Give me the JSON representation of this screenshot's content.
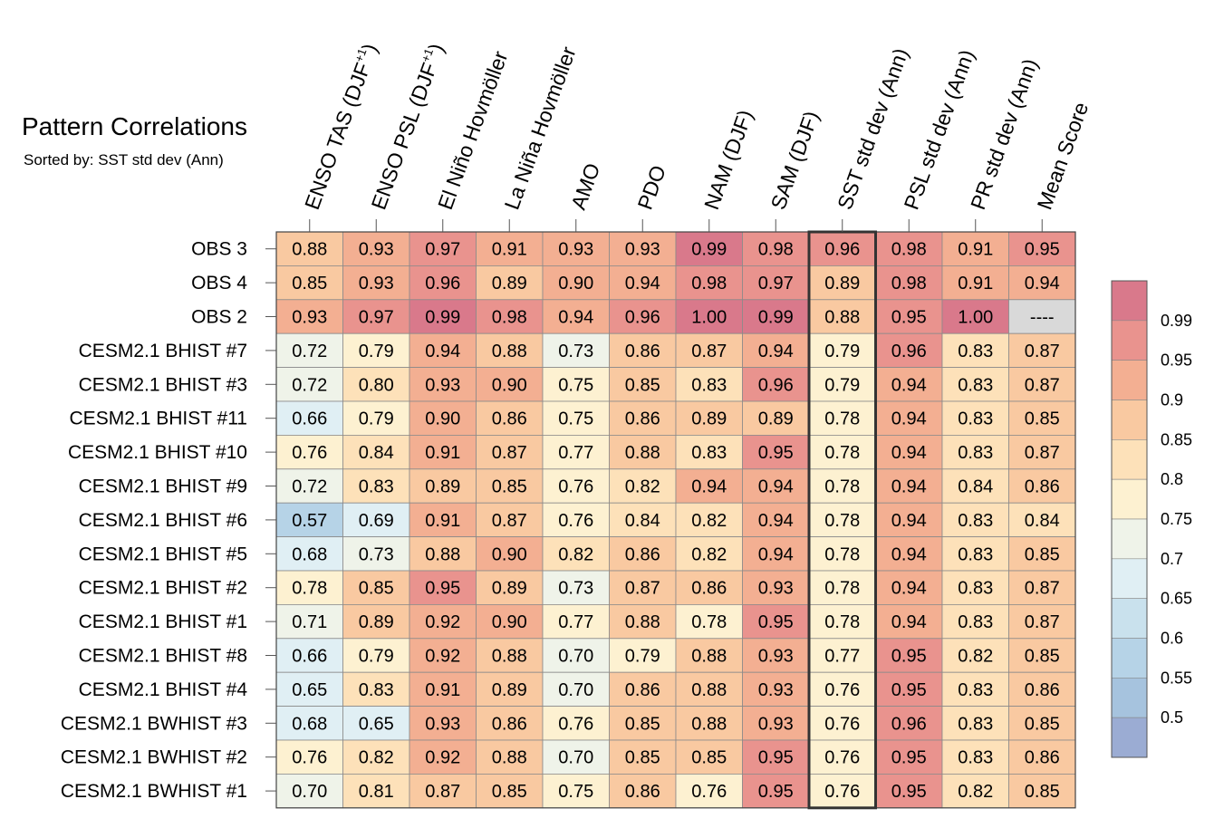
{
  "title": "Pattern Correlations",
  "subtitle": "Sorted by: SST std dev (Ann)",
  "chart_data": {
    "type": "heatmap",
    "title": "Pattern Correlations",
    "subtitle": "Sorted by: SST std dev (Ann)",
    "columns": [
      "ENSO TAS (DJF⁺¹)",
      "ENSO PSL (DJF⁺¹)",
      "El Niño Hovmöller",
      "La Niña Hovmöller",
      "AMO",
      "PDO",
      "NAM (DJF)",
      "SAM (DJF)",
      "SST std dev (Ann)",
      "PSL std dev (Ann)",
      "PR std dev (Ann)",
      "Mean Score"
    ],
    "rows": [
      "OBS 3",
      "OBS 4",
      "OBS 2",
      "CESM2.1 BHIST #7",
      "CESM2.1 BHIST #3",
      "CESM2.1 BHIST #11",
      "CESM2.1 BHIST #10",
      "CESM2.1 BHIST #9",
      "CESM2.1 BHIST #6",
      "CESM2.1 BHIST #5",
      "CESM2.1 BHIST #2",
      "CESM2.1 BHIST #1",
      "CESM2.1 BHIST #8",
      "CESM2.1 BHIST #4",
      "CESM2.1 BWHIST #3",
      "CESM2.1 BWHIST #2",
      "CESM2.1 BWHIST #1"
    ],
    "values": [
      [
        "0.88",
        "0.93",
        "0.97",
        "0.91",
        "0.93",
        "0.93",
        "0.99",
        "0.98",
        "0.96",
        "0.98",
        "0.91",
        "0.95"
      ],
      [
        "0.85",
        "0.93",
        "0.96",
        "0.89",
        "0.90",
        "0.94",
        "0.98",
        "0.97",
        "0.89",
        "0.98",
        "0.91",
        "0.94"
      ],
      [
        "0.93",
        "0.97",
        "0.99",
        "0.98",
        "0.94",
        "0.96",
        "1.00",
        "0.99",
        "0.88",
        "0.95",
        "1.00",
        "----"
      ],
      [
        "0.72",
        "0.79",
        "0.94",
        "0.88",
        "0.73",
        "0.86",
        "0.87",
        "0.94",
        "0.79",
        "0.96",
        "0.83",
        "0.87"
      ],
      [
        "0.72",
        "0.80",
        "0.93",
        "0.90",
        "0.75",
        "0.85",
        "0.83",
        "0.96",
        "0.79",
        "0.94",
        "0.83",
        "0.87"
      ],
      [
        "0.66",
        "0.79",
        "0.90",
        "0.86",
        "0.75",
        "0.86",
        "0.89",
        "0.89",
        "0.78",
        "0.94",
        "0.83",
        "0.85"
      ],
      [
        "0.76",
        "0.84",
        "0.91",
        "0.87",
        "0.77",
        "0.88",
        "0.83",
        "0.95",
        "0.78",
        "0.94",
        "0.83",
        "0.87"
      ],
      [
        "0.72",
        "0.83",
        "0.89",
        "0.85",
        "0.76",
        "0.82",
        "0.94",
        "0.94",
        "0.78",
        "0.94",
        "0.84",
        "0.86"
      ],
      [
        "0.57",
        "0.69",
        "0.91",
        "0.87",
        "0.76",
        "0.84",
        "0.82",
        "0.94",
        "0.78",
        "0.94",
        "0.83",
        "0.84"
      ],
      [
        "0.68",
        "0.73",
        "0.88",
        "0.90",
        "0.82",
        "0.86",
        "0.82",
        "0.94",
        "0.78",
        "0.94",
        "0.83",
        "0.85"
      ],
      [
        "0.78",
        "0.85",
        "0.95",
        "0.89",
        "0.73",
        "0.87",
        "0.86",
        "0.93",
        "0.78",
        "0.94",
        "0.83",
        "0.87"
      ],
      [
        "0.71",
        "0.89",
        "0.92",
        "0.90",
        "0.77",
        "0.88",
        "0.78",
        "0.95",
        "0.78",
        "0.94",
        "0.83",
        "0.87"
      ],
      [
        "0.66",
        "0.79",
        "0.92",
        "0.88",
        "0.70",
        "0.79",
        "0.88",
        "0.93",
        "0.77",
        "0.95",
        "0.82",
        "0.85"
      ],
      [
        "0.65",
        "0.83",
        "0.91",
        "0.89",
        "0.70",
        "0.86",
        "0.88",
        "0.93",
        "0.76",
        "0.95",
        "0.83",
        "0.86"
      ],
      [
        "0.68",
        "0.65",
        "0.93",
        "0.86",
        "0.76",
        "0.85",
        "0.88",
        "0.93",
        "0.76",
        "0.96",
        "0.83",
        "0.85"
      ],
      [
        "0.76",
        "0.82",
        "0.92",
        "0.88",
        "0.70",
        "0.85",
        "0.85",
        "0.95",
        "0.76",
        "0.95",
        "0.83",
        "0.86"
      ],
      [
        "0.70",
        "0.81",
        "0.87",
        "0.85",
        "0.75",
        "0.86",
        "0.76",
        "0.95",
        "0.76",
        "0.95",
        "0.82",
        "0.85"
      ]
    ],
    "missing_value_label": "----",
    "missing_color": "#d9d9d9",
    "sorted_by_column": "SST std dev (Ann)",
    "colorbar": {
      "tick_labels": [
        "0.99",
        "0.95",
        "0.9",
        "0.85",
        "0.8",
        "0.75",
        "0.7",
        "0.65",
        "0.6",
        "0.55",
        "0.5"
      ],
      "boundaries": [
        0.5,
        0.55,
        0.6,
        0.65,
        0.7,
        0.75,
        0.8,
        0.85,
        0.9,
        0.95,
        0.99
      ],
      "colors": [
        "#9bacd3",
        "#a6c3de",
        "#b6d3e7",
        "#c9e1ed",
        "#e0eff4",
        "#eff3e9",
        "#fdf1d1",
        "#fde1b9",
        "#f9c9a1",
        "#f3af92",
        "#e9938e",
        "#d9798b"
      ],
      "placement": "right"
    }
  }
}
